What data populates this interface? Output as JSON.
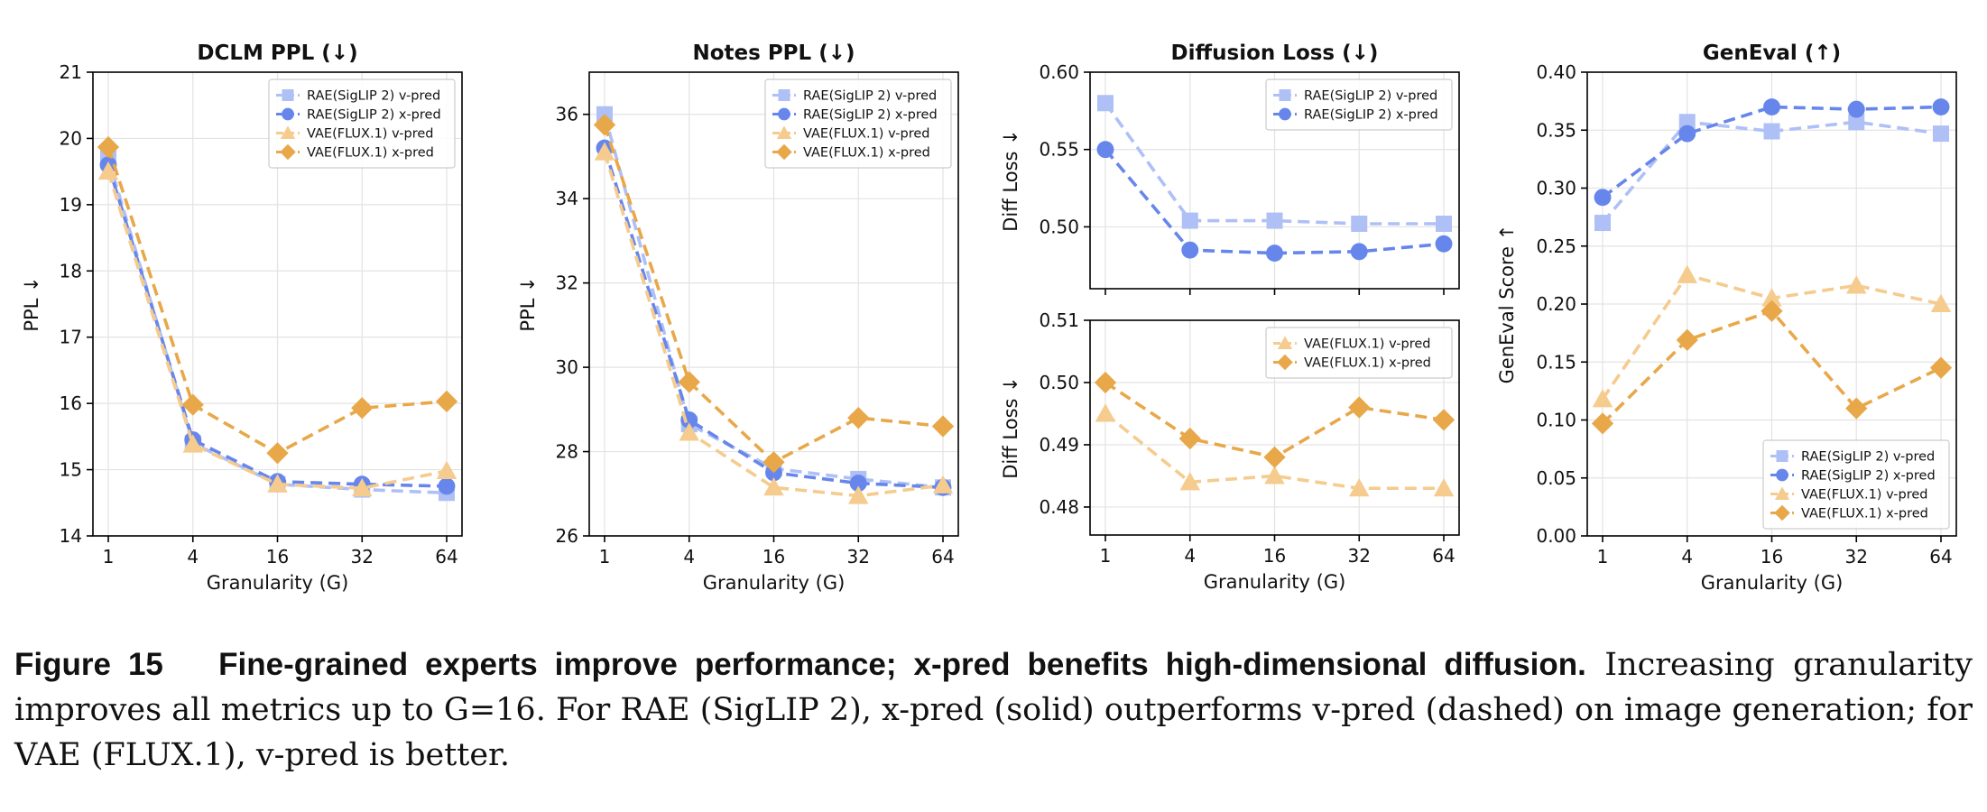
{
  "colors": {
    "rae_v": "#aec0f5",
    "rae_x": "#6686eb",
    "vae_v": "#f5cb8e",
    "vae_x": "#e8a84a",
    "grid": "#e3e3e3",
    "axis": "#000000"
  },
  "chart_data": [
    {
      "type": "line",
      "title": "DCLM PPL (↓)",
      "xlabel": "Granularity (G)",
      "ylabel": "PPL ↓",
      "categories": [
        "1",
        "4",
        "16",
        "32",
        "64"
      ],
      "ylim": [
        14,
        21
      ],
      "yticks": [
        "14",
        "15",
        "16",
        "17",
        "18",
        "19",
        "20",
        "21"
      ],
      "legend_position": "top-right",
      "series": [
        {
          "name": "RAE(SigLIP 2) v-pred",
          "key": "rae_v",
          "marker": "square",
          "values": [
            19.7,
            15.4,
            14.78,
            14.7,
            14.65
          ]
        },
        {
          "name": "RAE(SigLIP 2) x-pred",
          "key": "rae_x",
          "marker": "circle",
          "values": [
            19.6,
            15.45,
            14.82,
            14.78,
            14.75
          ]
        },
        {
          "name": "VAE(FLUX.1) v-pred",
          "key": "vae_v",
          "marker": "triangle",
          "values": [
            19.5,
            15.38,
            14.78,
            14.72,
            14.98
          ]
        },
        {
          "name": "VAE(FLUX.1) x-pred",
          "key": "vae_x",
          "marker": "diamond",
          "values": [
            19.87,
            15.98,
            15.25,
            15.93,
            16.03
          ]
        }
      ]
    },
    {
      "type": "line",
      "title": "Notes PPL (↓)",
      "xlabel": "Granularity (G)",
      "ylabel": "PPL ↓",
      "categories": [
        "1",
        "4",
        "16",
        "32",
        "64"
      ],
      "ylim": [
        26,
        37
      ],
      "yticks": [
        "26",
        "28",
        "30",
        "32",
        "34",
        "36"
      ],
      "legend_position": "top-right",
      "series": [
        {
          "name": "RAE(SigLIP 2) v-pred",
          "key": "rae_v",
          "marker": "square",
          "values": [
            36.0,
            28.65,
            27.6,
            27.35,
            27.15
          ]
        },
        {
          "name": "RAE(SigLIP 2) x-pred",
          "key": "rae_x",
          "marker": "circle",
          "values": [
            35.2,
            28.75,
            27.5,
            27.25,
            27.15
          ]
        },
        {
          "name": "VAE(FLUX.1) v-pred",
          "key": "vae_v",
          "marker": "triangle",
          "values": [
            35.1,
            28.45,
            27.15,
            26.95,
            27.2
          ]
        },
        {
          "name": "VAE(FLUX.1) x-pred",
          "key": "vae_x",
          "marker": "diamond",
          "values": [
            35.75,
            29.65,
            27.75,
            28.8,
            28.6
          ]
        }
      ]
    },
    {
      "type": "line",
      "title": "Diffusion Loss (↓)",
      "xlabel": "",
      "ylabel": "Diff Loss ↓",
      "categories": [
        "1",
        "4",
        "16",
        "32",
        "64"
      ],
      "ylim": [
        0.46,
        0.6
      ],
      "yticks": [
        "0.50",
        "0.55",
        "0.60"
      ],
      "legend_position": "top-right",
      "series": [
        {
          "name": "RAE(SigLIP 2) v-pred",
          "key": "rae_v",
          "marker": "square",
          "values": [
            0.58,
            0.504,
            0.504,
            0.502,
            0.502
          ]
        },
        {
          "name": "RAE(SigLIP 2) x-pred",
          "key": "rae_x",
          "marker": "circle",
          "values": [
            0.55,
            0.485,
            0.483,
            0.484,
            0.489
          ]
        }
      ]
    },
    {
      "type": "line",
      "title": "",
      "xlabel": "Granularity (G)",
      "ylabel": "Diff Loss ↓",
      "categories": [
        "1",
        "4",
        "16",
        "32",
        "64"
      ],
      "ylim": [
        0.4755,
        0.51
      ],
      "yticks": [
        "0.48",
        "0.49",
        "0.50",
        "0.51"
      ],
      "legend_position": "top-right",
      "series": [
        {
          "name": "VAE(FLUX.1) v-pred",
          "key": "vae_v",
          "marker": "triangle",
          "values": [
            0.495,
            0.484,
            0.485,
            0.483,
            0.483
          ]
        },
        {
          "name": "VAE(FLUX.1) x-pred",
          "key": "vae_x",
          "marker": "diamond",
          "values": [
            0.5,
            0.491,
            0.488,
            0.496,
            0.494
          ]
        }
      ]
    },
    {
      "type": "line",
      "title": "GenEval (↑)",
      "xlabel": "Granularity (G)",
      "ylabel": "GenEval Score ↑",
      "categories": [
        "1",
        "4",
        "16",
        "32",
        "64"
      ],
      "ylim": [
        0.0,
        0.4
      ],
      "yticks": [
        "0.00",
        "0.05",
        "0.10",
        "0.15",
        "0.20",
        "0.25",
        "0.30",
        "0.35",
        "0.40"
      ],
      "legend_position": "bottom-right",
      "series": [
        {
          "name": "RAE(SigLIP 2) v-pred",
          "key": "rae_v",
          "marker": "square",
          "values": [
            0.27,
            0.357,
            0.349,
            0.357,
            0.347
          ]
        },
        {
          "name": "RAE(SigLIP 2) x-pred",
          "key": "rae_x",
          "marker": "circle",
          "values": [
            0.292,
            0.347,
            0.37,
            0.368,
            0.37
          ]
        },
        {
          "name": "VAE(FLUX.1) v-pred",
          "key": "vae_v",
          "marker": "triangle",
          "values": [
            0.118,
            0.225,
            0.205,
            0.216,
            0.2
          ]
        },
        {
          "name": "VAE(FLUX.1) x-pred",
          "key": "vae_x",
          "marker": "diamond",
          "values": [
            0.097,
            0.169,
            0.194,
            0.11,
            0.145
          ]
        }
      ]
    }
  ],
  "caption": {
    "label": "Figure 15",
    "bold": "Fine-grained experts improve performance; x-pred benefits high-dimensional diffusion.",
    "body": "Increasing granularity improves all metrics up to G=16. For RAE (SigLIP 2), x-pred (solid) outperforms v-pred (dashed) on image generation; for VAE (FLUX.1), v-pred is better."
  }
}
